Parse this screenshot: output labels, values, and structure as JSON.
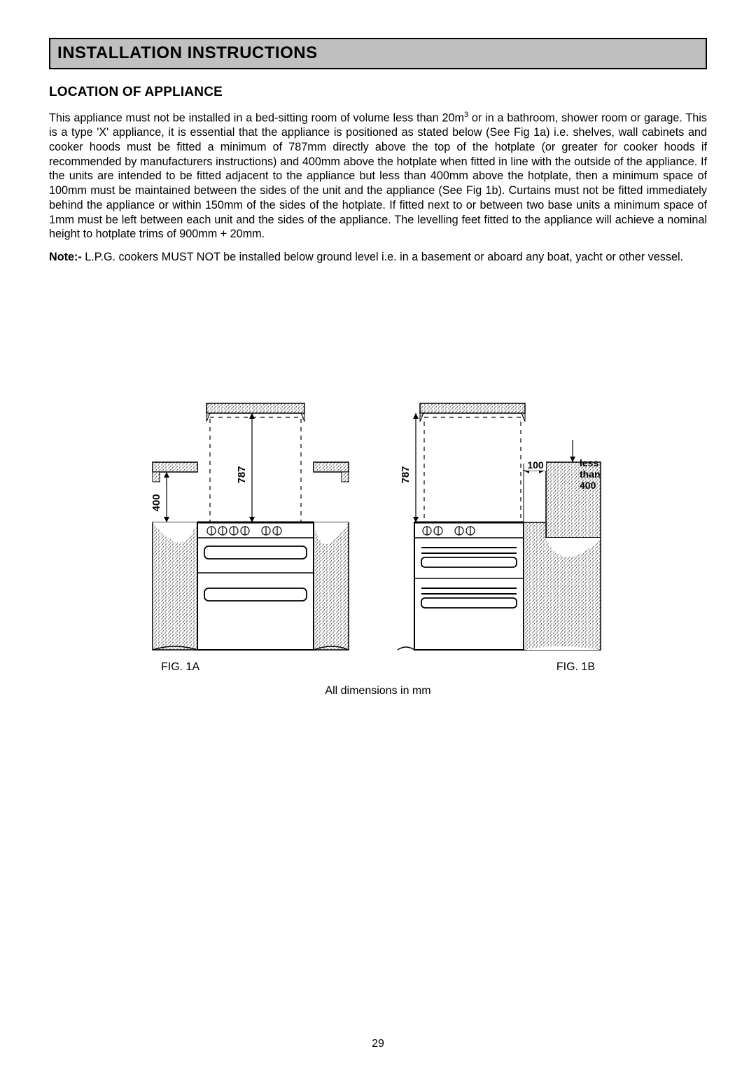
{
  "section_title": "INSTALLATION INSTRUCTIONS",
  "subhead": "LOCATION OF APPLIANCE",
  "paragraph_html": "This appliance must not be installed in a bed-sitting room of volume less than 20m<sup>3</sup> or in a bathroom, shower room or garage.  This is a type 'X' appliance, it is essential that the appliance is positioned as stated below (See Fig 1a) i.e. shelves, wall cabinets and cooker hoods must be fitted a minimum of 787mm directly above the top of the hotplate (or greater for cooker hoods if recommended by manufacturers instructions) and 400mm above the hotplate when fitted in line with the outside of the appliance.  If the units are intended to be fitted adjacent to the appliance but less than 400mm above the hotplate, then a minimum space of 100mm must be maintained between the sides of the unit and the appliance (See Fig 1b).  Curtains must not be fitted immediately behind the appliance or within 150mm of the sides of the hotplate.  If fitted next to or between two base units a minimum space of 1mm must be left between each unit and the sides of the appliance.  The levelling feet fitted to the appliance will achieve a nominal height to hotplate trims of 900mm + 20mm.",
  "note_label": "Note:- ",
  "note_text": "L.P.G. cookers MUST NOT be installed below ground level i.e. in a basement or aboard any boat, yacht or other vessel.",
  "fig1a": {
    "caption": "FIG. 1A",
    "dim_left": "400",
    "dim_top": "787"
  },
  "fig1b": {
    "caption": "FIG. 1B",
    "dim_top": "787",
    "dim_gap": "100",
    "label_line1": "less",
    "label_line2": "than",
    "label_line3": "400"
  },
  "all_dimensions": "All dimensions in mm",
  "page_number": "29",
  "colors": {
    "header_bg": "#c0c0c0",
    "border": "#000000",
    "text": "#000000",
    "stipple": "#000000"
  }
}
